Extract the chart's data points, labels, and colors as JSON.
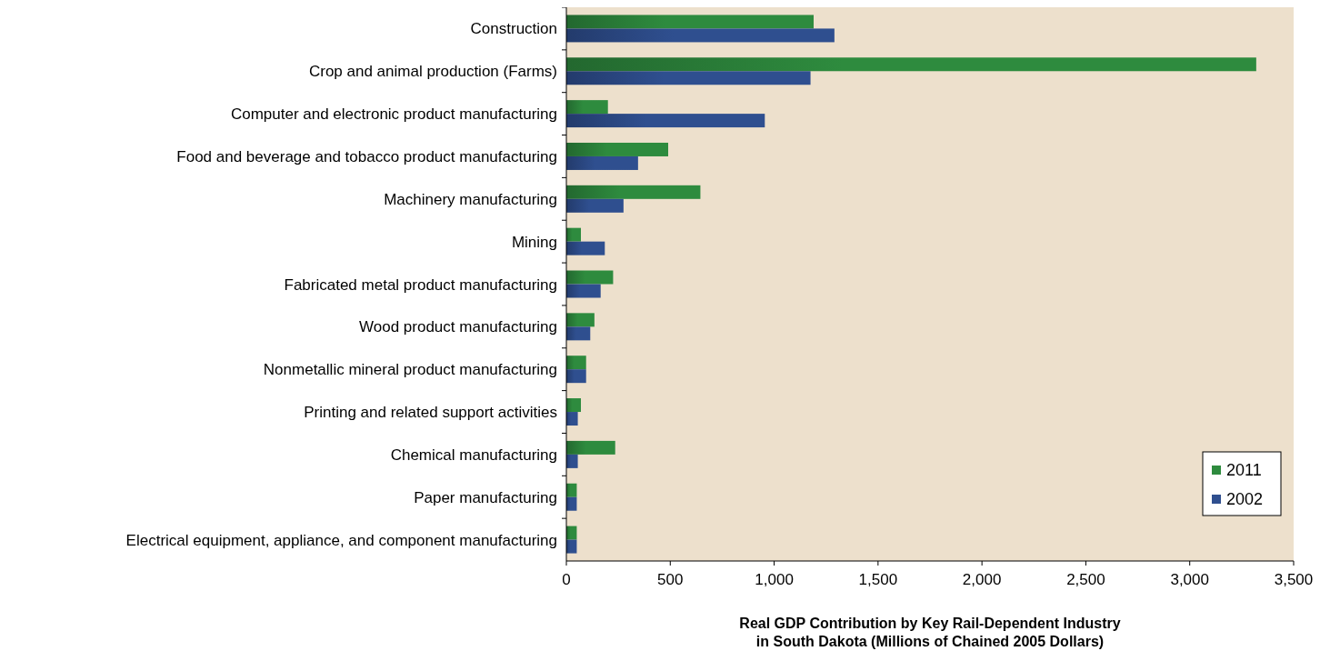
{
  "chart_data": {
    "type": "bar",
    "orientation": "horizontal",
    "xlabel": "Real GDP Contribution by Key Rail-Dependent Industry\nin South Dakota (Millions of Chained 2005 Dollars)",
    "categories": [
      "Construction",
      "Crop and animal production (Farms)",
      "Computer and electronic product manufacturing",
      "Food and beverage and tobacco product manufacturing",
      "Machinery manufacturing",
      "Mining",
      "Fabricated metal product manufacturing",
      "Wood product manufacturing",
      "Nonmetallic mineral product manufacturing",
      "Printing and related support activities",
      "Chemical manufacturing",
      "Paper manufacturing",
      "Electrical equipment, appliance, and component manufacturing"
    ],
    "series": [
      {
        "name": "2011",
        "color": "#2e8b3e",
        "values": [
          1190,
          3320,
          200,
          490,
          645,
          70,
          225,
          135,
          95,
          70,
          235,
          50,
          50
        ]
      },
      {
        "name": "2002",
        "color": "#2f4f8f",
        "values": [
          1290,
          1175,
          955,
          345,
          275,
          185,
          165,
          115,
          95,
          55,
          55,
          50,
          50
        ]
      }
    ],
    "xlim": [
      0,
      3500
    ],
    "xticks": [
      0,
      {
        "value": 500,
        "label": "500"
      },
      {
        "value": 1000,
        "label": "1,000"
      },
      {
        "value": 1500,
        "label": "1,500"
      },
      {
        "value": 2000,
        "label": "2,000"
      },
      {
        "value": 2500,
        "label": "2,500"
      },
      {
        "value": 3000,
        "label": "3,000"
      },
      {
        "value": 3500,
        "label": "3,500"
      }
    ],
    "legend": "bottom right",
    "grid": false
  }
}
